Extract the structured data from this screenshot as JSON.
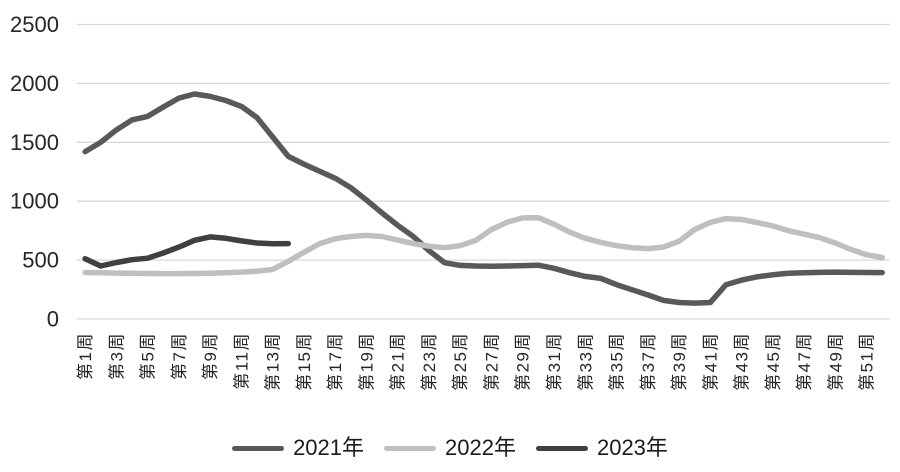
{
  "chart_data": {
    "type": "line",
    "title": "",
    "xlabel": "",
    "ylabel": "",
    "ylim": [
      0,
      2500
    ],
    "y_ticks": [
      0,
      500,
      1000,
      1500,
      2000,
      2500
    ],
    "grid": "horizontal",
    "legend_position": "bottom",
    "x_unit": "week",
    "x_tick_labels": [
      "第1周",
      "第3周",
      "第5周",
      "第7周",
      "第9周",
      "第11周",
      "第13周",
      "第15周",
      "第17周",
      "第19周",
      "第21周",
      "第23周",
      "第25周",
      "第27周",
      "第29周",
      "第31周",
      "第33周",
      "第35周",
      "第37周",
      "第39周",
      "第41周",
      "第43周",
      "第45周",
      "第47周",
      "第49周",
      "第51周"
    ],
    "series": [
      {
        "name": "2021年",
        "color": "#595959",
        "start_week": 1,
        "values": [
          1420,
          1500,
          1605,
          1690,
          1720,
          1800,
          1875,
          1910,
          1890,
          1855,
          1805,
          1710,
          1545,
          1380,
          1315,
          1255,
          1195,
          1115,
          1010,
          900,
          795,
          700,
          580,
          478,
          455,
          450,
          448,
          450,
          453,
          457,
          430,
          393,
          362,
          345,
          292,
          248,
          205,
          158,
          140,
          135,
          140,
          290,
          330,
          358,
          375,
          388,
          393,
          396,
          398,
          396,
          395,
          394
        ]
      },
      {
        "name": "2022年",
        "color": "#bfbfbf",
        "start_week": 1,
        "values": [
          395,
          392,
          390,
          388,
          386,
          385,
          385,
          386,
          388,
          392,
          398,
          406,
          420,
          490,
          565,
          640,
          682,
          700,
          710,
          700,
          670,
          640,
          618,
          605,
          622,
          668,
          760,
          822,
          858,
          860,
          805,
          737,
          685,
          650,
          622,
          605,
          598,
          610,
          660,
          760,
          820,
          852,
          845,
          818,
          790,
          750,
          720,
          690,
          645,
          590,
          545,
          522
        ]
      },
      {
        "name": "2023年",
        "color": "#404040",
        "start_week": 1,
        "values": [
          512,
          450,
          480,
          503,
          516,
          560,
          610,
          668,
          697,
          685,
          663,
          645,
          638,
          640
        ]
      }
    ]
  },
  "colors": {
    "background": "#ffffff",
    "gridline": "#d9d9d9",
    "axis_text": "#262626"
  },
  "legend": {
    "items": [
      {
        "label": "2021年"
      },
      {
        "label": "2022年"
      },
      {
        "label": "2023年"
      }
    ]
  }
}
